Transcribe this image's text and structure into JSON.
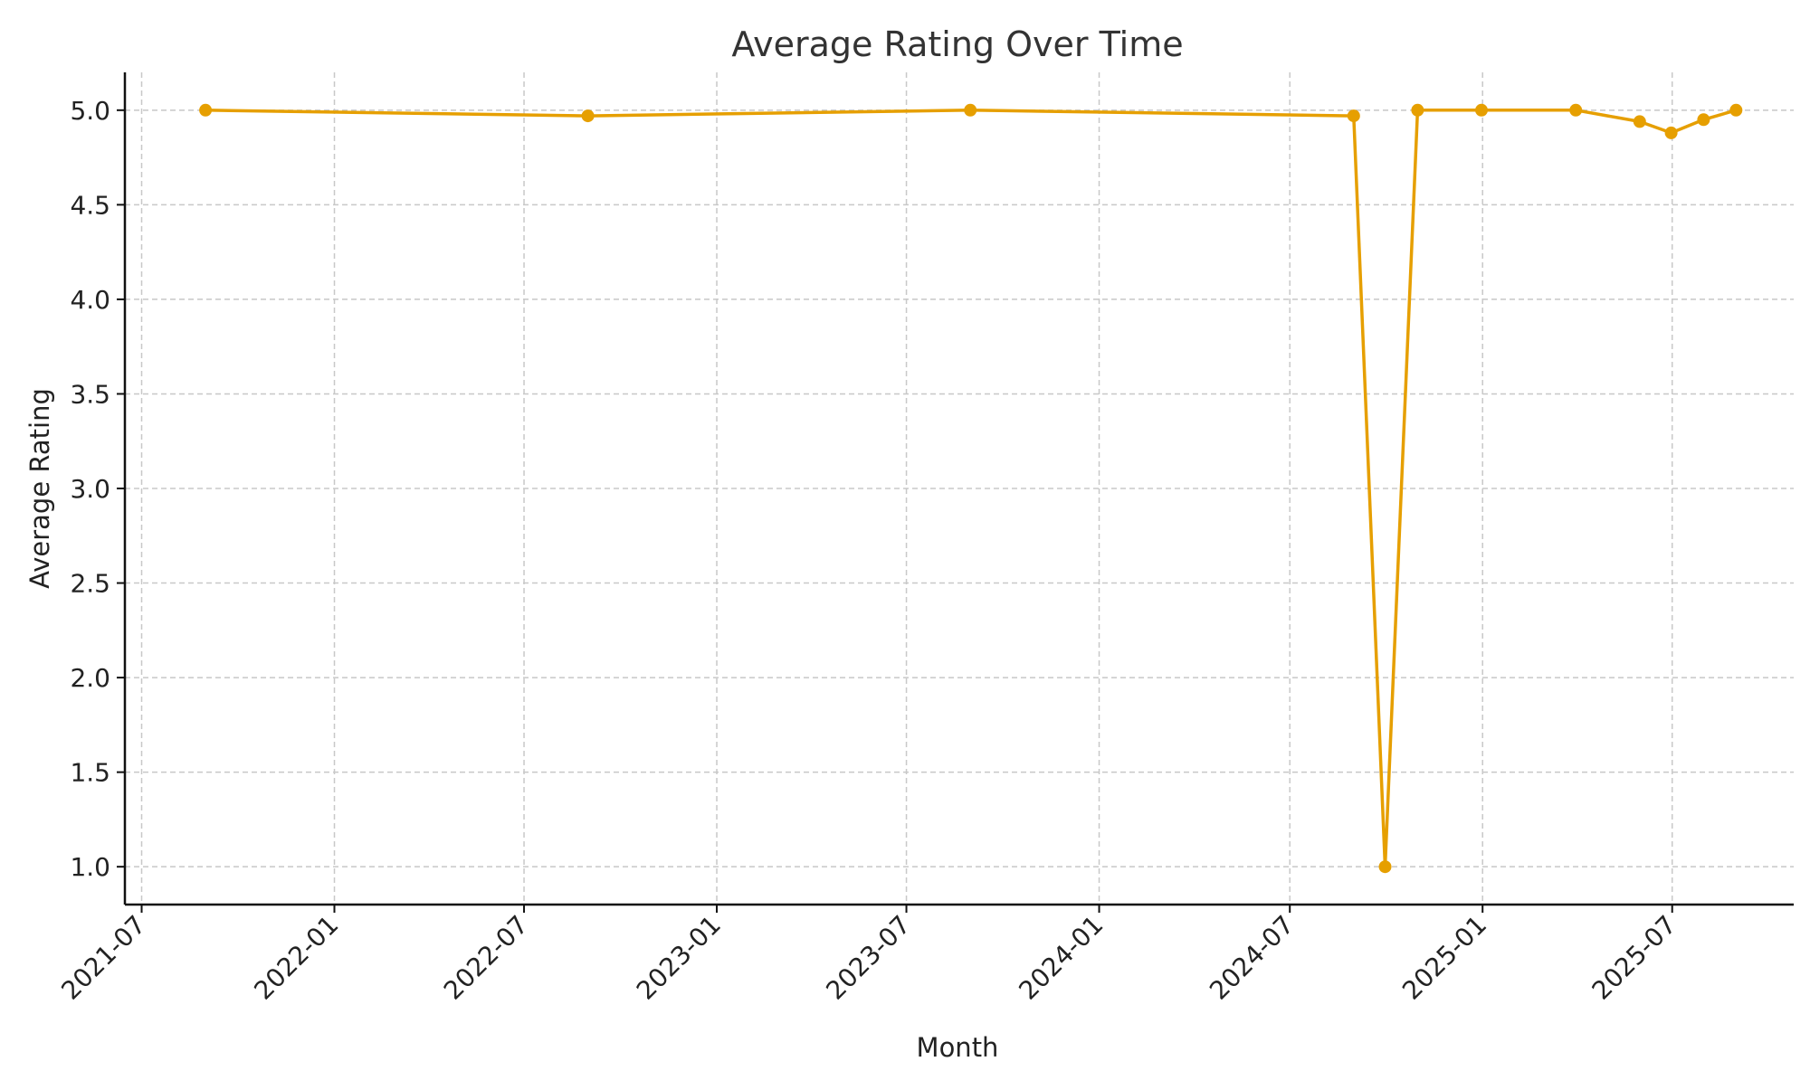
{
  "chart_data": {
    "type": "line",
    "title": "Average Rating Over Time",
    "xlabel": "Month",
    "ylabel": "Average Rating",
    "x_axis_type": "date",
    "xlim": [
      "2021-06-15",
      "2025-10-25"
    ],
    "ylim": [
      0.8,
      5.2
    ],
    "x_ticks": [
      "2021-07",
      "2022-01",
      "2022-07",
      "2023-01",
      "2023-07",
      "2024-01",
      "2024-07",
      "2025-01",
      "2025-07"
    ],
    "y_ticks": [
      "1.0",
      "1.5",
      "2.0",
      "2.5",
      "3.0",
      "3.5",
      "4.0",
      "4.5",
      "5.0"
    ],
    "grid": true,
    "legend": "none",
    "marker": "circle",
    "series": [
      {
        "name": "",
        "color": "#E69F00",
        "points": [
          {
            "x": "2021-08-31",
            "y": 5.0
          },
          {
            "x": "2022-08-31",
            "y": 4.97
          },
          {
            "x": "2023-08-31",
            "y": 5.0
          },
          {
            "x": "2024-08-31",
            "y": 4.97
          },
          {
            "x": "2024-09-30",
            "y": 1.0
          },
          {
            "x": "2024-10-31",
            "y": 5.0
          },
          {
            "x": "2024-12-31",
            "y": 5.0
          },
          {
            "x": "2025-03-31",
            "y": 5.0
          },
          {
            "x": "2025-05-31",
            "y": 4.94
          },
          {
            "x": "2025-06-30",
            "y": 4.88
          },
          {
            "x": "2025-07-31",
            "y": 4.95
          },
          {
            "x": "2025-08-31",
            "y": 5.0
          }
        ]
      }
    ]
  }
}
